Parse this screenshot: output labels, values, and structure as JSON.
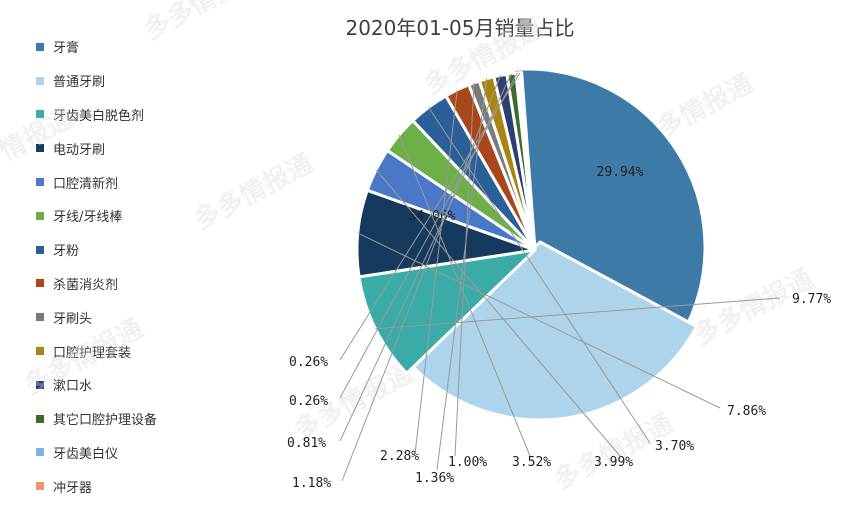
{
  "chart_data": {
    "type": "pie",
    "title": "2020年01-05月销量占比",
    "legend_position": "left",
    "categories": [
      "牙膏",
      "普通牙刷",
      "牙齿美白脱色剂",
      "电动牙刷",
      "口腔清新剂",
      "牙线/牙线棒",
      "牙粉",
      "杀菌消炎剂",
      "牙刷头",
      "口腔护理套装",
      "漱口水",
      "其它口腔护理设备",
      "牙齿美白仪",
      "冲牙器"
    ],
    "values": [
      34.06,
      29.94,
      9.77,
      7.86,
      3.99,
      3.52,
      3.7,
      2.28,
      1.0,
      1.36,
      1.18,
      0.81,
      0.26,
      0.26
    ],
    "labels": [
      "34.06%",
      "29.94%",
      "9.77%",
      "7.86%",
      "3.99%",
      "3.52%",
      "3.70%",
      "2.28%",
      "1.00%",
      "1.36%",
      "1.18%",
      "0.81%",
      "0.26%",
      "0.26%"
    ],
    "colors": [
      "#3E7AA8",
      "#AED4EC",
      "#3AABA6",
      "#153A5E",
      "#4A78C8",
      "#6FAF48",
      "#2A5F98",
      "#A9471A",
      "#7A7A7A",
      "#A88510",
      "#2C3F6E",
      "#3D6B2E",
      "#7FB2DE",
      "#F0956A"
    ]
  },
  "watermark": "多多情报通"
}
